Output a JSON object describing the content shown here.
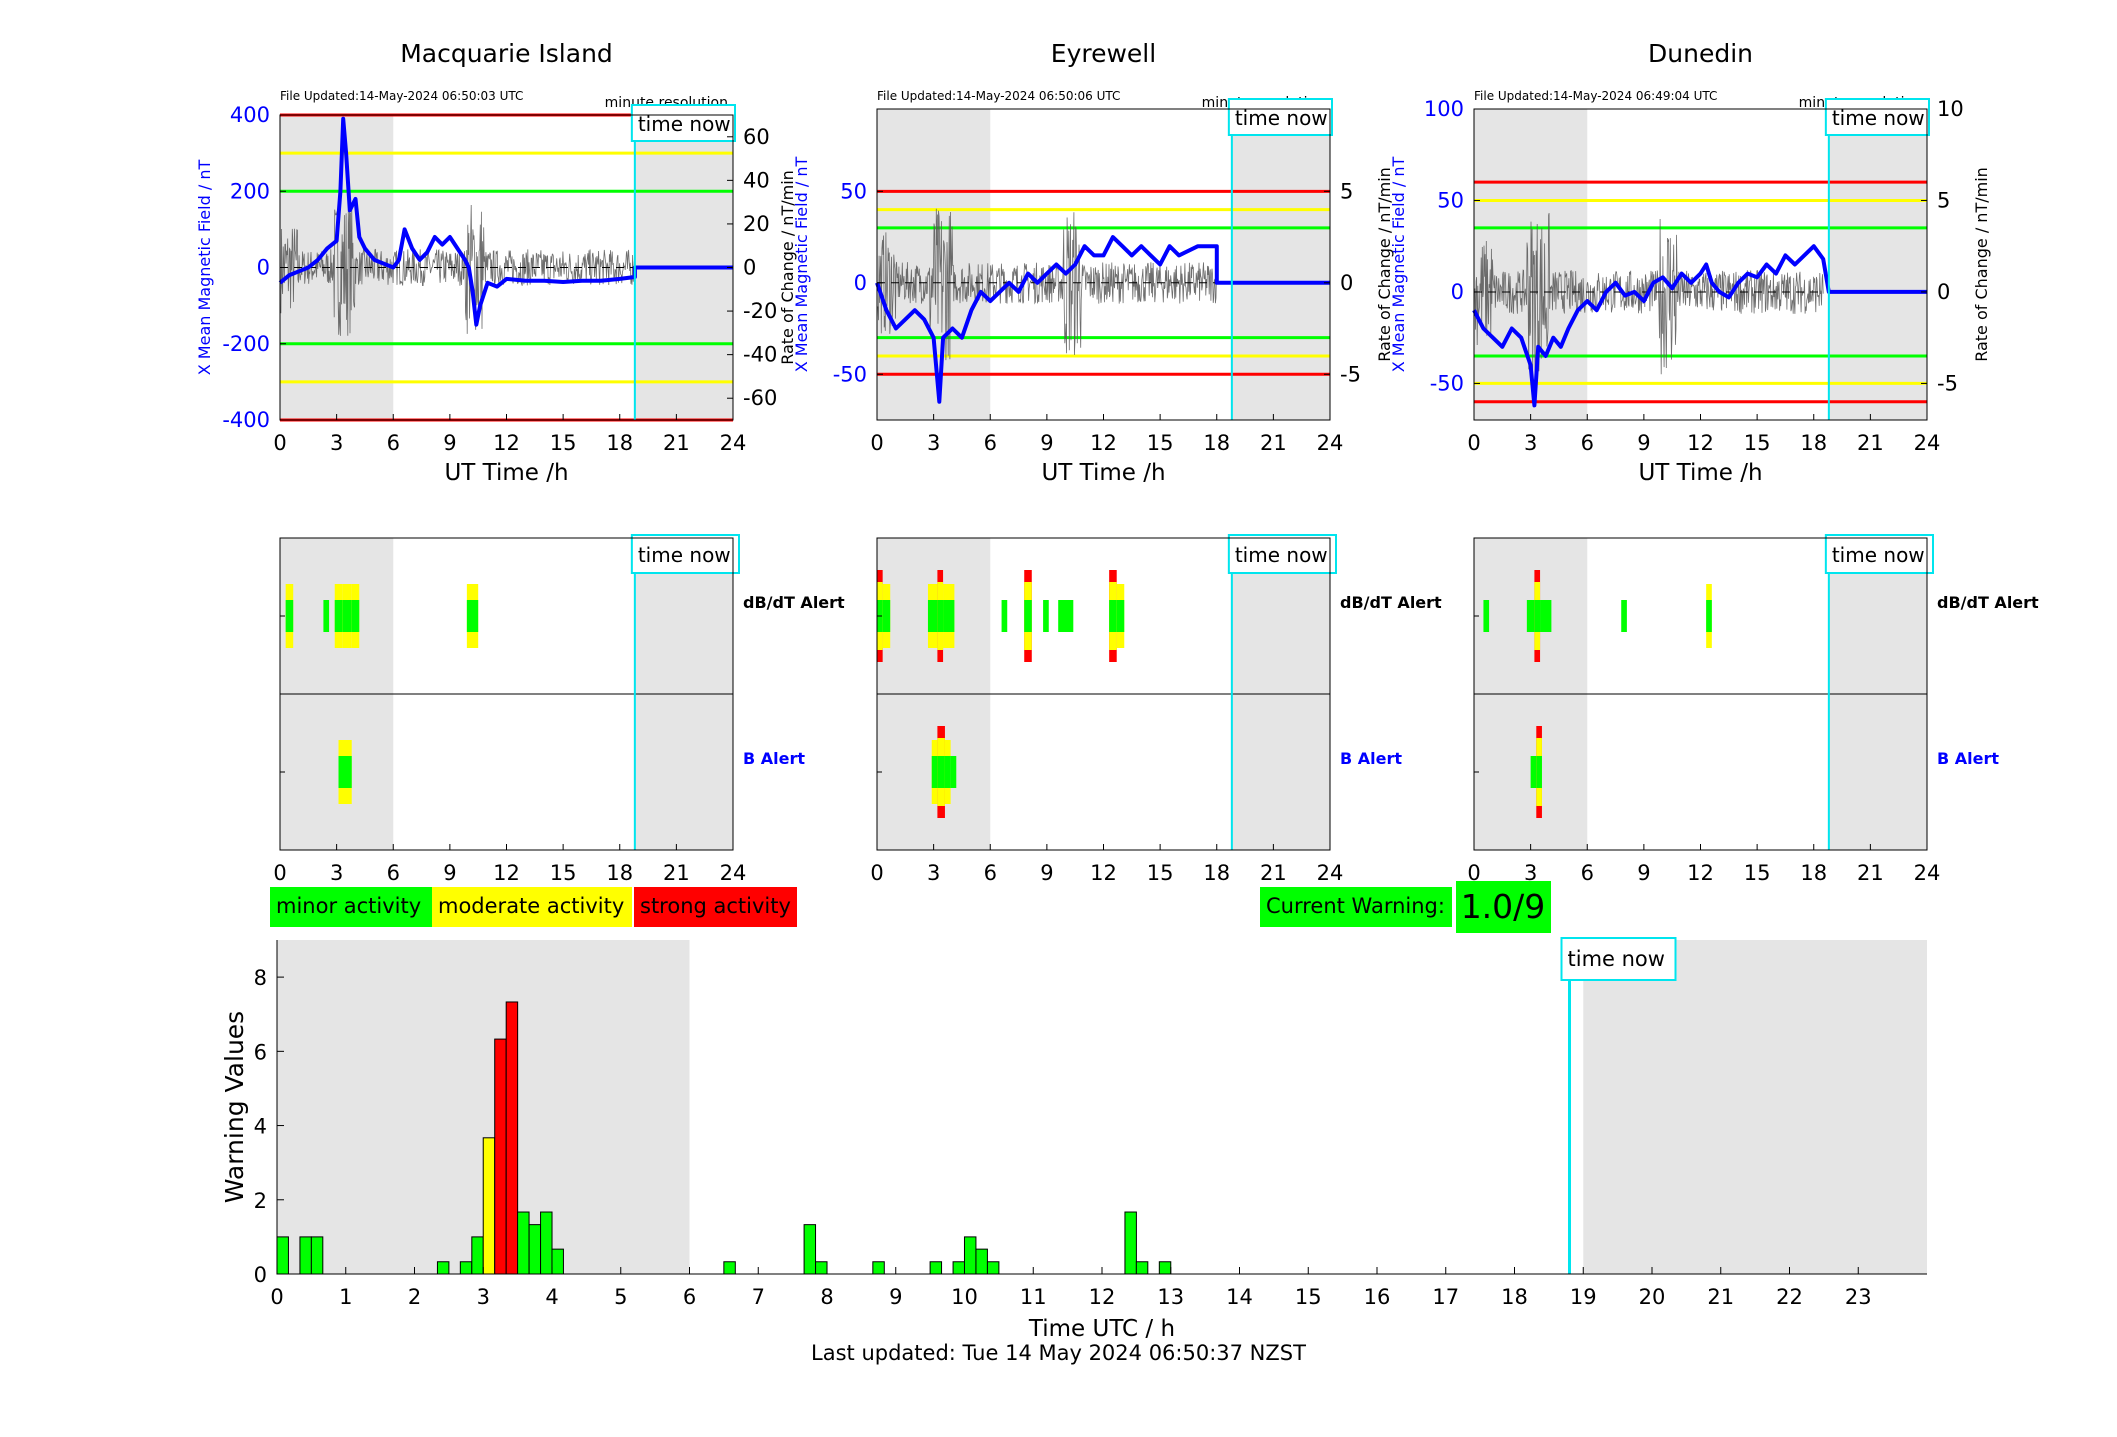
{
  "common": {
    "xlabel_mag": "UT Time /h",
    "x_ticks": [
      0,
      3,
      6,
      9,
      12,
      15,
      18,
      21,
      24
    ],
    "time_now_label": "time now",
    "time_now_hour": 18.8,
    "night_shading_hours": [
      [
        0,
        6
      ],
      [
        18.8,
        24
      ]
    ],
    "resolution_label": "minute resolution",
    "ylabel_left": "X Mean Magnetic Field / nT",
    "ylabel_right": "Rate of Change / nT/min",
    "alert_labels": {
      "dbdt": "dB/dT Alert",
      "b": "B Alert"
    }
  },
  "stations": [
    {
      "name": "Macquarie Island",
      "file_updated": "File Updated:14-May-2024 06:50:03 UTC",
      "ylim_left": [
        -400,
        400
      ],
      "yticks_left": [
        -400,
        -200,
        0,
        200,
        400
      ],
      "ylim_right": [
        -70,
        70
      ],
      "yticks_right": [
        -60,
        -40,
        -20,
        0,
        20,
        40,
        60
      ],
      "thresholds": {
        "green": 200,
        "yellow": 300,
        "red": 400
      },
      "field_series": [
        [
          0,
          -40
        ],
        [
          0.5,
          -20
        ],
        [
          1,
          -10
        ],
        [
          1.5,
          0
        ],
        [
          2,
          20
        ],
        [
          2.5,
          50
        ],
        [
          3,
          70
        ],
        [
          3.2,
          200
        ],
        [
          3.35,
          390
        ],
        [
          3.5,
          300
        ],
        [
          3.7,
          150
        ],
        [
          4,
          180
        ],
        [
          4.2,
          80
        ],
        [
          4.5,
          50
        ],
        [
          5,
          20
        ],
        [
          5.5,
          10
        ],
        [
          6,
          0
        ],
        [
          6.3,
          20
        ],
        [
          6.6,
          100
        ],
        [
          7,
          50
        ],
        [
          7.4,
          20
        ],
        [
          7.8,
          40
        ],
        [
          8.2,
          80
        ],
        [
          8.6,
          60
        ],
        [
          9,
          80
        ],
        [
          9.4,
          50
        ],
        [
          9.8,
          20
        ],
        [
          10,
          0
        ],
        [
          10.2,
          -60
        ],
        [
          10.4,
          -150
        ],
        [
          10.6,
          -100
        ],
        [
          11,
          -40
        ],
        [
          11.5,
          -50
        ],
        [
          12,
          -30
        ],
        [
          13,
          -35
        ],
        [
          14,
          -35
        ],
        [
          15,
          -38
        ],
        [
          16,
          -35
        ],
        [
          17,
          -35
        ],
        [
          18,
          -30
        ],
        [
          18.8,
          -25
        ],
        [
          18.8,
          0
        ],
        [
          24,
          0
        ]
      ],
      "dbdt_alerts": [
        {
          "start": 0.3,
          "end": 0.7,
          "level": "moderate"
        },
        {
          "start": 2.3,
          "end": 2.6,
          "level": "minor"
        },
        {
          "start": 2.9,
          "end": 3.3,
          "level": "moderate"
        },
        {
          "start": 3.3,
          "end": 3.8,
          "level": "moderate"
        },
        {
          "start": 3.8,
          "end": 4.2,
          "level": "moderate"
        },
        {
          "start": 9.9,
          "end": 10.5,
          "level": "moderate"
        }
      ],
      "b_alerts": [
        {
          "start": 3.1,
          "end": 3.8,
          "level": "moderate"
        }
      ]
    },
    {
      "name": "Eyrewell",
      "file_updated": "File Updated:14-May-2024 06:50:06 UTC",
      "ylim_left": [
        -75,
        95
      ],
      "yticks_left": [
        -50,
        0,
        50
      ],
      "ylim_right": [
        -7.5,
        9.5
      ],
      "yticks_right": [
        -5,
        0,
        5
      ],
      "thresholds": {
        "green": 30,
        "yellow": 40,
        "red": 50
      },
      "field_series": [
        [
          0,
          0
        ],
        [
          0.5,
          -15
        ],
        [
          1,
          -25
        ],
        [
          1.5,
          -20
        ],
        [
          2,
          -15
        ],
        [
          2.5,
          -20
        ],
        [
          3,
          -30
        ],
        [
          3.3,
          -65
        ],
        [
          3.5,
          -30
        ],
        [
          4,
          -25
        ],
        [
          4.5,
          -30
        ],
        [
          5,
          -15
        ],
        [
          5.5,
          -5
        ],
        [
          6,
          -10
        ],
        [
          6.5,
          -5
        ],
        [
          7,
          0
        ],
        [
          7.5,
          -5
        ],
        [
          8,
          5
        ],
        [
          8.5,
          0
        ],
        [
          9,
          5
        ],
        [
          9.5,
          10
        ],
        [
          10,
          5
        ],
        [
          10.5,
          10
        ],
        [
          11,
          20
        ],
        [
          11.5,
          15
        ],
        [
          12,
          15
        ],
        [
          12.5,
          25
        ],
        [
          13,
          20
        ],
        [
          13.5,
          15
        ],
        [
          14,
          20
        ],
        [
          14.5,
          15
        ],
        [
          15,
          10
        ],
        [
          15.5,
          20
        ],
        [
          16,
          15
        ],
        [
          17,
          20
        ],
        [
          18,
          20
        ],
        [
          18,
          0
        ],
        [
          24,
          0
        ]
      ],
      "dbdt_alerts": [
        {
          "start": 0,
          "end": 0.3,
          "level": "strong"
        },
        {
          "start": 0.3,
          "end": 0.7,
          "level": "moderate"
        },
        {
          "start": 2.7,
          "end": 3.2,
          "level": "moderate"
        },
        {
          "start": 3.2,
          "end": 3.5,
          "level": "strong"
        },
        {
          "start": 3.5,
          "end": 4.1,
          "level": "moderate"
        },
        {
          "start": 6.6,
          "end": 6.9,
          "level": "minor"
        },
        {
          "start": 7.8,
          "end": 8.2,
          "level": "strong"
        },
        {
          "start": 8.8,
          "end": 9.1,
          "level": "minor"
        },
        {
          "start": 9.6,
          "end": 10.4,
          "level": "minor"
        },
        {
          "start": 12.3,
          "end": 12.7,
          "level": "strong"
        },
        {
          "start": 12.7,
          "end": 13.1,
          "level": "moderate"
        }
      ],
      "b_alerts": [
        {
          "start": 2.9,
          "end": 3.2,
          "level": "moderate"
        },
        {
          "start": 3.2,
          "end": 3.6,
          "level": "strong"
        },
        {
          "start": 3.6,
          "end": 3.9,
          "level": "moderate"
        },
        {
          "start": 3.9,
          "end": 4.2,
          "level": "minor"
        }
      ]
    },
    {
      "name": "Dunedin",
      "file_updated": "File Updated:14-May-2024 06:49:04 UTC",
      "ylim_left": [
        -70,
        100
      ],
      "yticks_left": [
        -50,
        0,
        50,
        100
      ],
      "ylim_right": [
        -7,
        10
      ],
      "yticks_right": [
        -5,
        0,
        5,
        10
      ],
      "thresholds": {
        "green": 35,
        "yellow": 50,
        "red": 60
      },
      "field_series": [
        [
          0,
          -10
        ],
        [
          0.5,
          -20
        ],
        [
          1,
          -25
        ],
        [
          1.5,
          -30
        ],
        [
          2,
          -20
        ],
        [
          2.5,
          -25
        ],
        [
          3,
          -40
        ],
        [
          3.2,
          -62
        ],
        [
          3.4,
          -30
        ],
        [
          3.8,
          -35
        ],
        [
          4.2,
          -25
        ],
        [
          4.6,
          -30
        ],
        [
          5,
          -20
        ],
        [
          5.5,
          -10
        ],
        [
          6,
          -5
        ],
        [
          6.5,
          -10
        ],
        [
          7,
          0
        ],
        [
          7.5,
          5
        ],
        [
          8,
          -2
        ],
        [
          8.5,
          0
        ],
        [
          9,
          -5
        ],
        [
          9.5,
          5
        ],
        [
          10,
          8
        ],
        [
          10.5,
          2
        ],
        [
          11,
          10
        ],
        [
          11.5,
          5
        ],
        [
          12,
          10
        ],
        [
          12.3,
          15
        ],
        [
          12.6,
          5
        ],
        [
          13,
          0
        ],
        [
          13.5,
          -3
        ],
        [
          14,
          5
        ],
        [
          14.5,
          10
        ],
        [
          15,
          8
        ],
        [
          15.5,
          15
        ],
        [
          16,
          10
        ],
        [
          16.5,
          20
        ],
        [
          17,
          15
        ],
        [
          18,
          25
        ],
        [
          18.5,
          18
        ],
        [
          18.8,
          0
        ],
        [
          24,
          0
        ]
      ],
      "dbdt_alerts": [
        {
          "start": 0.5,
          "end": 0.8,
          "level": "minor"
        },
        {
          "start": 2.8,
          "end": 3.2,
          "level": "minor"
        },
        {
          "start": 3.2,
          "end": 3.5,
          "level": "strong"
        },
        {
          "start": 3.5,
          "end": 4.1,
          "level": "minor"
        },
        {
          "start": 7.8,
          "end": 8.1,
          "level": "minor"
        },
        {
          "start": 12.3,
          "end": 12.6,
          "level": "moderate"
        }
      ],
      "b_alerts": [
        {
          "start": 3.0,
          "end": 3.3,
          "level": "minor"
        },
        {
          "start": 3.3,
          "end": 3.6,
          "level": "strong"
        }
      ]
    }
  ],
  "legend": {
    "minor": "minor activity",
    "moderate": "moderate activity",
    "strong": "strong activity"
  },
  "current_warning": {
    "label": "Current Warning:",
    "value": "1.0/9"
  },
  "chart_data": {
    "type": "bar",
    "xlabel": "Time UTC / h",
    "ylabel": "Warning Values",
    "x_ticks": [
      0,
      1,
      2,
      3,
      4,
      5,
      6,
      7,
      8,
      9,
      10,
      11,
      12,
      13,
      14,
      15,
      16,
      17,
      18,
      19,
      20,
      21,
      22,
      23
    ],
    "xlim": [
      0,
      24
    ],
    "ylim": [
      0,
      9
    ],
    "y_ticks": [
      0,
      2,
      4,
      6,
      8
    ],
    "time_now_hour": 18.8,
    "night_shading_hours": [
      [
        0,
        6
      ],
      [
        19,
        24
      ]
    ],
    "bar_width": 0.1667,
    "values": [
      {
        "x": 0.083,
        "y": 1.0,
        "level": "minor"
      },
      {
        "x": 0.417,
        "y": 1.0,
        "level": "minor"
      },
      {
        "x": 0.583,
        "y": 1.0,
        "level": "minor"
      },
      {
        "x": 2.417,
        "y": 0.33,
        "level": "minor"
      },
      {
        "x": 2.75,
        "y": 0.33,
        "level": "minor"
      },
      {
        "x": 2.917,
        "y": 1.0,
        "level": "minor"
      },
      {
        "x": 3.083,
        "y": 3.67,
        "level": "moderate"
      },
      {
        "x": 3.25,
        "y": 6.33,
        "level": "strong"
      },
      {
        "x": 3.417,
        "y": 7.33,
        "level": "strong"
      },
      {
        "x": 3.583,
        "y": 1.67,
        "level": "minor"
      },
      {
        "x": 3.75,
        "y": 1.33,
        "level": "minor"
      },
      {
        "x": 3.917,
        "y": 1.67,
        "level": "minor"
      },
      {
        "x": 4.083,
        "y": 0.67,
        "level": "minor"
      },
      {
        "x": 6.583,
        "y": 0.33,
        "level": "minor"
      },
      {
        "x": 7.75,
        "y": 1.33,
        "level": "minor"
      },
      {
        "x": 7.917,
        "y": 0.33,
        "level": "minor"
      },
      {
        "x": 8.75,
        "y": 0.33,
        "level": "minor"
      },
      {
        "x": 9.583,
        "y": 0.33,
        "level": "minor"
      },
      {
        "x": 9.917,
        "y": 0.33,
        "level": "minor"
      },
      {
        "x": 10.083,
        "y": 1.0,
        "level": "minor"
      },
      {
        "x": 10.25,
        "y": 0.67,
        "level": "minor"
      },
      {
        "x": 10.417,
        "y": 0.33,
        "level": "minor"
      },
      {
        "x": 12.417,
        "y": 1.67,
        "level": "minor"
      },
      {
        "x": 12.583,
        "y": 0.33,
        "level": "minor"
      },
      {
        "x": 12.917,
        "y": 0.33,
        "level": "minor"
      }
    ]
  },
  "colors": {
    "minor": "#00ff00",
    "moderate": "#ffff00",
    "strong": "#ff0000",
    "field_line": "#0000ff",
    "rate_line": "#555555",
    "time_now": "#00e5ee",
    "night": "#e5e5e5",
    "left_axis_text": "#0000ff"
  },
  "footer": "Last updated: Tue 14 May 2024 06:50:37 NZST"
}
